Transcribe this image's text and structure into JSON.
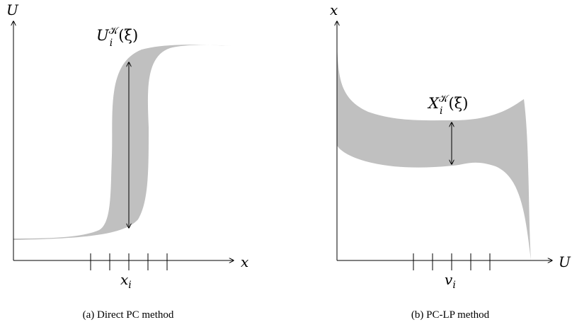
{
  "panel_a": {
    "y_axis_label": "U",
    "x_axis_label": "x",
    "band_label_base": "U",
    "band_label_sup": "𝒦",
    "band_label_sub": "i",
    "band_label_arg": "(ξ)",
    "tick_label_base": "x",
    "tick_label_sub": "i",
    "caption": "(a) Direct PC method"
  },
  "panel_b": {
    "y_axis_label": "x",
    "x_axis_label": "U",
    "band_label_base": "X",
    "band_label_sup": "𝒦",
    "band_label_sub": "i",
    "band_label_arg": "(ξ)",
    "tick_label_base": "v",
    "tick_label_sub": "i",
    "caption": "(b) PC-LP method"
  },
  "colors": {
    "band_fill": "#c0c0c0",
    "axis": "#000000"
  }
}
